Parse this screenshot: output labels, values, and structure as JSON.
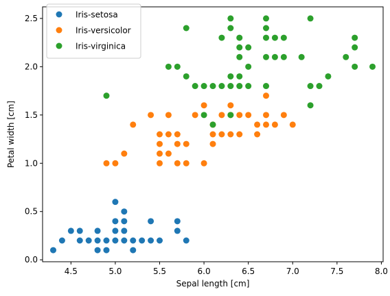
{
  "chart_data": {
    "type": "scatter",
    "title": "",
    "xlabel": "Sepal length [cm]",
    "ylabel": "Petal width [cm]",
    "xlim": [
      4.18,
      8.02
    ],
    "ylim": [
      -0.02,
      2.62
    ],
    "xticks": [
      4.0,
      4.5,
      5.0,
      5.5,
      6.0,
      6.5,
      7.0,
      7.5,
      8.0
    ],
    "xtick_labels": [
      "4.0",
      "4.5",
      "5.0",
      "5.5",
      "6.0",
      "6.5",
      "7.0",
      "7.5",
      "8.0"
    ],
    "yticks": [
      0.0,
      0.5,
      1.0,
      1.5,
      2.0,
      2.5
    ],
    "ytick_labels": [
      "0.0",
      "0.5",
      "1.0",
      "1.5",
      "2.0",
      "2.5"
    ],
    "grid": false,
    "legend_position": "top-left",
    "series": [
      {
        "name": "Iris-setosa",
        "color": "#1f77b4",
        "points": [
          [
            4.3,
            0.1
          ],
          [
            4.4,
            0.2
          ],
          [
            4.5,
            0.3
          ],
          [
            4.6,
            0.2
          ],
          [
            4.6,
            0.3
          ],
          [
            4.7,
            0.2
          ],
          [
            4.8,
            0.1
          ],
          [
            4.8,
            0.2
          ],
          [
            4.8,
            0.3
          ],
          [
            4.9,
            0.1
          ],
          [
            4.9,
            0.2
          ],
          [
            5.0,
            0.2
          ],
          [
            5.0,
            0.3
          ],
          [
            5.0,
            0.4
          ],
          [
            5.0,
            0.6
          ],
          [
            5.1,
            0.2
          ],
          [
            5.1,
            0.3
          ],
          [
            5.1,
            0.4
          ],
          [
            5.1,
            0.5
          ],
          [
            5.2,
            0.1
          ],
          [
            5.2,
            0.2
          ],
          [
            5.3,
            0.2
          ],
          [
            5.4,
            0.2
          ],
          [
            5.4,
            0.4
          ],
          [
            5.5,
            0.2
          ],
          [
            5.7,
            0.3
          ],
          [
            5.7,
            0.4
          ],
          [
            5.8,
            0.2
          ]
        ]
      },
      {
        "name": "Iris-versicolor",
        "color": "#ff7f0e",
        "points": [
          [
            4.9,
            1.0
          ],
          [
            5.0,
            1.0
          ],
          [
            5.1,
            1.1
          ],
          [
            5.2,
            1.4
          ],
          [
            5.4,
            1.5
          ],
          [
            5.5,
            1.0
          ],
          [
            5.5,
            1.1
          ],
          [
            5.5,
            1.2
          ],
          [
            5.5,
            1.3
          ],
          [
            5.6,
            1.1
          ],
          [
            5.6,
            1.3
          ],
          [
            5.6,
            1.5
          ],
          [
            5.7,
            1.0
          ],
          [
            5.7,
            1.2
          ],
          [
            5.7,
            1.3
          ],
          [
            5.8,
            1.0
          ],
          [
            5.8,
            1.2
          ],
          [
            5.9,
            1.5
          ],
          [
            6.0,
            1.0
          ],
          [
            6.0,
            1.6
          ],
          [
            6.1,
            1.2
          ],
          [
            6.1,
            1.3
          ],
          [
            6.1,
            1.4
          ],
          [
            6.2,
            1.3
          ],
          [
            6.2,
            1.5
          ],
          [
            6.3,
            1.3
          ],
          [
            6.3,
            1.5
          ],
          [
            6.3,
            1.6
          ],
          [
            6.4,
            1.3
          ],
          [
            6.4,
            1.5
          ],
          [
            6.5,
            1.5
          ],
          [
            6.6,
            1.3
          ],
          [
            6.6,
            1.4
          ],
          [
            6.7,
            1.4
          ],
          [
            6.7,
            1.5
          ],
          [
            6.7,
            1.7
          ],
          [
            6.8,
            1.4
          ],
          [
            6.9,
            1.5
          ],
          [
            7.0,
            1.4
          ]
        ]
      },
      {
        "name": "Iris-virginica",
        "color": "#2ca02c",
        "points": [
          [
            4.9,
            1.7
          ],
          [
            5.6,
            2.0
          ],
          [
            5.7,
            2.0
          ],
          [
            5.8,
            1.9
          ],
          [
            5.8,
            2.4
          ],
          [
            5.9,
            1.8
          ],
          [
            6.0,
            1.5
          ],
          [
            6.0,
            1.8
          ],
          [
            6.1,
            1.4
          ],
          [
            6.1,
            1.8
          ],
          [
            6.2,
            1.8
          ],
          [
            6.2,
            2.3
          ],
          [
            6.3,
            1.5
          ],
          [
            6.3,
            1.8
          ],
          [
            6.3,
            1.9
          ],
          [
            6.3,
            2.4
          ],
          [
            6.3,
            2.5
          ],
          [
            6.4,
            1.8
          ],
          [
            6.4,
            1.9
          ],
          [
            6.4,
            2.1
          ],
          [
            6.4,
            2.2
          ],
          [
            6.4,
            2.3
          ],
          [
            6.5,
            1.8
          ],
          [
            6.5,
            2.0
          ],
          [
            6.5,
            2.2
          ],
          [
            6.7,
            1.8
          ],
          [
            6.7,
            2.1
          ],
          [
            6.7,
            2.3
          ],
          [
            6.7,
            2.4
          ],
          [
            6.7,
            2.5
          ],
          [
            6.8,
            2.1
          ],
          [
            6.8,
            2.3
          ],
          [
            6.9,
            2.1
          ],
          [
            6.9,
            2.3
          ],
          [
            7.1,
            2.1
          ],
          [
            7.2,
            1.6
          ],
          [
            7.2,
            1.8
          ],
          [
            7.2,
            2.5
          ],
          [
            7.3,
            1.8
          ],
          [
            7.4,
            1.9
          ],
          [
            7.6,
            2.1
          ],
          [
            7.7,
            2.0
          ],
          [
            7.7,
            2.2
          ],
          [
            7.7,
            2.3
          ],
          [
            7.9,
            2.0
          ]
        ]
      }
    ]
  }
}
